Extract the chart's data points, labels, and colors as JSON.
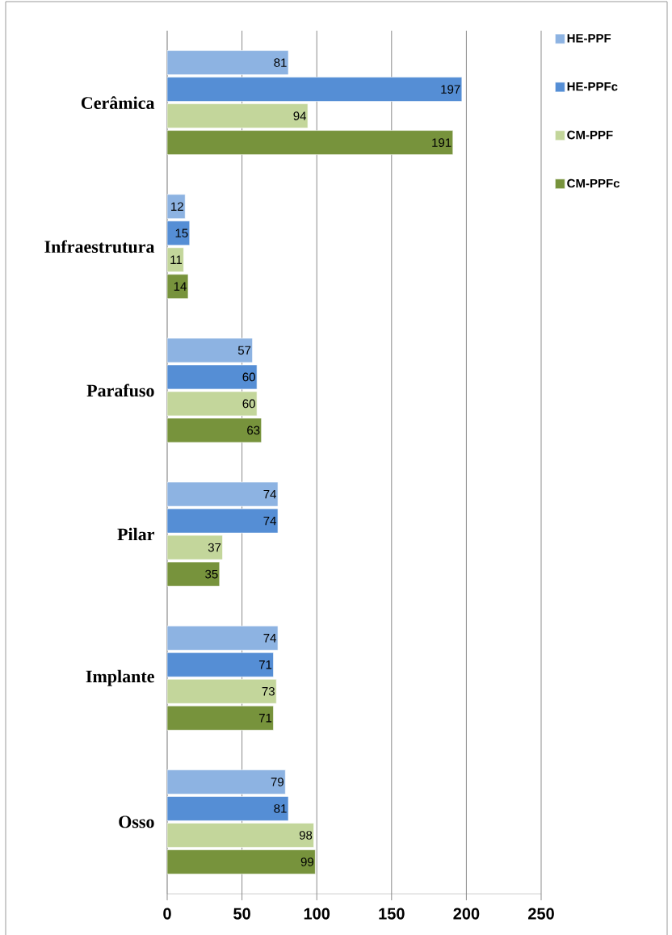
{
  "chart_data": {
    "type": "bar",
    "orientation": "horizontal",
    "categories": [
      "Cerâmica",
      "Infraestrutura",
      "Parafuso",
      "Pilar",
      "Implante",
      "Osso"
    ],
    "series": [
      {
        "name": "HE-PPF",
        "color": "#8db3e2",
        "values": [
          81,
          12,
          57,
          74,
          74,
          79
        ]
      },
      {
        "name": "HE-PPFc",
        "color": "#558ed5",
        "values": [
          197,
          15,
          60,
          74,
          71,
          81
        ]
      },
      {
        "name": "CM-PPF",
        "color": "#c3d69b",
        "values": [
          94,
          11,
          60,
          37,
          73,
          98
        ]
      },
      {
        "name": "CM-PPFc",
        "color": "#77933c",
        "values": [
          191,
          14,
          63,
          35,
          71,
          99
        ]
      }
    ],
    "xlim": [
      0,
      250
    ],
    "xticks": [
      0,
      50,
      100,
      150,
      200,
      250
    ],
    "grid": "x",
    "legend": "right",
    "data_labels": true
  }
}
